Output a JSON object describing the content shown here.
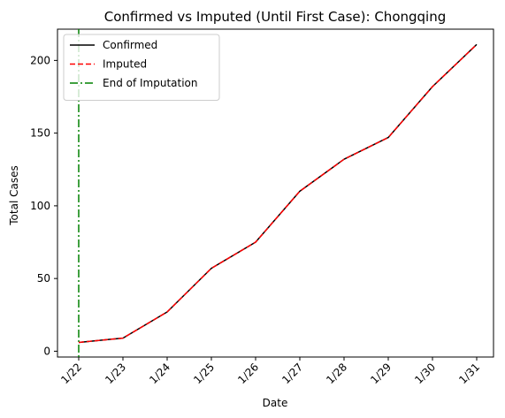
{
  "chart_data": {
    "type": "line",
    "title": "Confirmed vs Imputed (Until First Case): Chongqing",
    "xlabel": "Date",
    "ylabel": "Total Cases",
    "categories": [
      "1/22",
      "1/23",
      "1/24",
      "1/25",
      "1/26",
      "1/27",
      "1/28",
      "1/29",
      "1/30",
      "1/31"
    ],
    "ylim": [
      -4,
      221.5
    ],
    "yticks": [
      0,
      50,
      100,
      150,
      200
    ],
    "grid": false,
    "legend_position": "top-left",
    "series": [
      {
        "name": "Confirmed",
        "values": [
          6,
          9,
          27,
          57,
          75,
          110,
          132,
          147,
          182,
          211
        ],
        "color": "#000000",
        "style": "solid"
      },
      {
        "name": "Imputed",
        "values": [
          6,
          9,
          27,
          57,
          75,
          110,
          132,
          147,
          182,
          211
        ],
        "color": "#ff0000",
        "style": "dashed"
      }
    ],
    "vertical_lines": [
      {
        "name": "End of Imputation",
        "x": "1/22",
        "color": "#008000",
        "style": "dashdot"
      }
    ]
  }
}
